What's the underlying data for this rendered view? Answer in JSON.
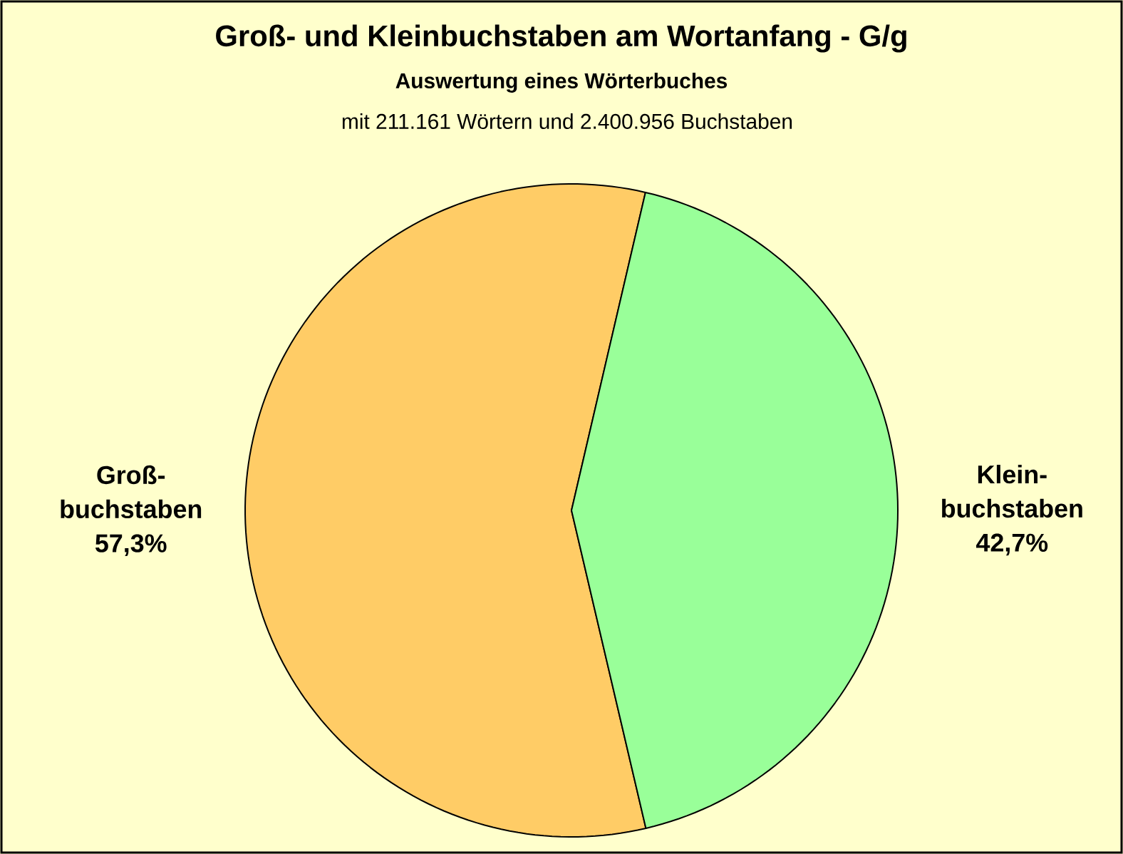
{
  "chart_data": {
    "type": "pie",
    "title": "Groß- und  Kleinbuchstaben am Wortanfang - G/g",
    "subtitle": "Auswertung eines Wörterbuches",
    "annotations": [
      "mit 211.161 Wörtern und 2.400.956 Buchstaben"
    ],
    "categories": [
      "Groß-buchstaben",
      "Klein-buchstaben"
    ],
    "values": [
      57.3,
      42.7
    ],
    "value_labels": [
      "57,3%",
      "42,7%"
    ],
    "colors": [
      "#ffcc66",
      "#99ff99"
    ]
  }
}
